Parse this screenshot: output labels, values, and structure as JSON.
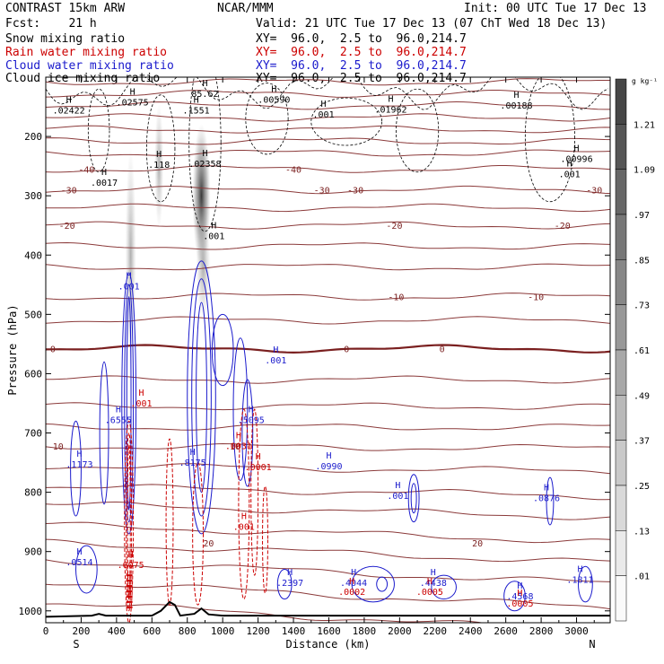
{
  "header": {
    "model": "CONTRAST 15km ARW",
    "org": "NCAR/MMM",
    "init": "Init: 00 UTC Tue 17 Dec 13",
    "fcst": "Fcst:    21 h",
    "valid": "Valid: 21 UTC Tue 17 Dec 13 (07 ChT Wed 18 Dec 13)"
  },
  "fields": [
    {
      "name": "Snow mixing ratio",
      "xy": "XY=  96.0,  2.5 to  96.0,214.7",
      "color": "#000000"
    },
    {
      "name": "Rain water mixing ratio",
      "xy": "XY=  96.0,  2.5 to  96.0,214.7",
      "color": "#cc0000"
    },
    {
      "name": "Cloud water mixing ratio",
      "xy": "XY=  96.0,  2.5 to  96.0,214.7",
      "color": "#1a1acc"
    },
    {
      "name": "Cloud ice mixing ratio",
      "xy": "XY=  96.0,  2.5 to  96.0,214.7",
      "color": "#000000"
    }
  ],
  "chart_data": {
    "type": "heatmap",
    "xlabel": "Distance (km)",
    "ylabel": "Pressure (hPa)",
    "x_ticks": [
      0,
      200,
      400,
      600,
      800,
      1000,
      1200,
      1400,
      1600,
      1800,
      2000,
      2200,
      2400,
      2600,
      2800,
      3000
    ],
    "y_ticks": [
      200,
      300,
      400,
      500,
      600,
      700,
      800,
      900,
      1000
    ],
    "xlim": [
      0,
      3190
    ],
    "ylim": [
      1020,
      100
    ],
    "x_left_label": "S",
    "x_right_label": "N",
    "colorbar": {
      "unit": "g kg⁻¹",
      "labels": [
        "1.21",
        "1.09",
        ".97",
        ".85",
        ".73",
        ".61",
        ".49",
        ".37",
        ".25",
        ".13",
        ".01"
      ],
      "levels": [
        1.21,
        1.09,
        0.97,
        0.85,
        0.73,
        0.61,
        0.49,
        0.37,
        0.25,
        0.13,
        0.01
      ]
    },
    "temperature_isotherms": [
      {
        "label": "-40",
        "p": 255,
        "x": [
          230,
          1400
        ]
      },
      {
        "label": "-30",
        "p": 290,
        "x": [
          130,
          1560,
          1750,
          3100
        ]
      },
      {
        "label": "-20",
        "p": 350,
        "x": [
          120,
          1970,
          2920
        ]
      },
      {
        "label": "-10",
        "p": 470,
        "x": [
          1980,
          2770
        ]
      },
      {
        "label": "0",
        "p": 558,
        "x": [
          40,
          1700,
          2240
        ]
      },
      {
        "label": "10",
        "p": 722,
        "x": [
          70,
          1070
        ]
      },
      {
        "label": "20",
        "p": 885,
        "x": [
          920,
          2440
        ]
      }
    ],
    "maxima_labels": [
      {
        "text": ".02422",
        "x": 130,
        "p": 158,
        "color": "#000000"
      },
      {
        "text": ".02575",
        "x": 490,
        "p": 145,
        "color": "#000000"
      },
      {
        "text": "85.62",
        "x": 900,
        "p": 130,
        "color": "#000000"
      },
      {
        "text": ".00590",
        "x": 1290,
        "p": 140,
        "color": "#000000"
      },
      {
        "text": ".001",
        "x": 1570,
        "p": 165,
        "color": "#000000"
      },
      {
        "text": ".01962",
        "x": 1950,
        "p": 157,
        "color": "#000000"
      },
      {
        "text": ".00188",
        "x": 2660,
        "p": 150,
        "color": "#000000"
      },
      {
        "text": ".1551",
        "x": 850,
        "p": 158,
        "color": "#000000"
      },
      {
        "text": ".118",
        "x": 640,
        "p": 250,
        "color": "#000000"
      },
      {
        "text": ".02358",
        "x": 900,
        "p": 248,
        "color": "#000000"
      },
      {
        "text": ".0017",
        "x": 330,
        "p": 280,
        "color": "#000000"
      },
      {
        "text": ".00996",
        "x": 3000,
        "p": 240,
        "color": "#000000"
      },
      {
        "text": ".001",
        "x": 2960,
        "p": 266,
        "color": "#000000"
      },
      {
        "text": ".001",
        "x": 950,
        "p": 370,
        "color": "#000000"
      },
      {
        "text": ".001",
        "x": 470,
        "p": 455,
        "color": "#1a1acc"
      },
      {
        "text": ".001",
        "x": 1300,
        "p": 580,
        "color": "#1a1acc"
      },
      {
        "text": ".6555",
        "x": 410,
        "p": 680,
        "color": "#1a1acc"
      },
      {
        "text": ".5095",
        "x": 1160,
        "p": 680,
        "color": "#1a1acc"
      },
      {
        "text": ".1173",
        "x": 190,
        "p": 755,
        "color": "#1a1acc"
      },
      {
        "text": ".8175",
        "x": 830,
        "p": 752,
        "color": "#1a1acc"
      },
      {
        "text": ".0990",
        "x": 1600,
        "p": 758,
        "color": "#1a1acc"
      },
      {
        "text": ".001",
        "x": 1990,
        "p": 808,
        "color": "#1a1acc"
      },
      {
        "text": ".0876",
        "x": 2830,
        "p": 812,
        "color": "#1a1acc"
      },
      {
        "text": ".0514",
        "x": 190,
        "p": 920,
        "color": "#1a1acc"
      },
      {
        "text": ".2397",
        "x": 1380,
        "p": 955,
        "color": "#1a1acc"
      },
      {
        "text": ".4044",
        "x": 1740,
        "p": 955,
        "color": "#1a1acc"
      },
      {
        "text": ".4438",
        "x": 2190,
        "p": 955,
        "color": "#1a1acc"
      },
      {
        "text": ".4568",
        "x": 2680,
        "p": 978,
        "color": "#1a1acc"
      },
      {
        "text": ".1811",
        "x": 3020,
        "p": 950,
        "color": "#1a1acc"
      },
      {
        "text": ".001",
        "x": 540,
        "p": 652,
        "color": "#cc0000"
      },
      {
        "text": ".0031",
        "x": 1090,
        "p": 724,
        "color": "#cc0000"
      },
      {
        "text": ".0001",
        "x": 1200,
        "p": 760,
        "color": "#cc0000"
      },
      {
        "text": ".001",
        "x": 1120,
        "p": 860,
        "color": "#cc0000"
      },
      {
        "text": ".6075",
        "x": 480,
        "p": 925,
        "color": "#cc0000"
      },
      {
        "text": ".0002",
        "x": 1730,
        "p": 970,
        "color": "#cc0000"
      },
      {
        "text": ".0005",
        "x": 2170,
        "p": 970,
        "color": "#cc0000"
      },
      {
        "text": ".0005",
        "x": 2680,
        "p": 990,
        "color": "#cc0000"
      }
    ]
  }
}
